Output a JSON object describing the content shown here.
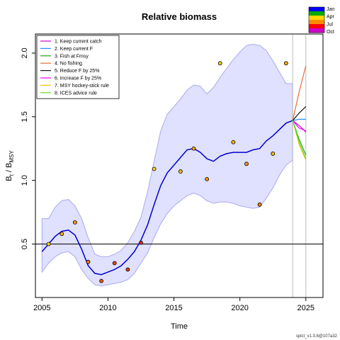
{
  "chart_data": {
    "type": "line",
    "title": "Relative biomass",
    "xlabel": "Time",
    "ylabel_main": "B",
    "ylabel_sub1": "t",
    "ylabel_mid": " / B",
    "ylabel_sub2": "MSY",
    "footer": "spict_v1.3.8@107a32",
    "xlim": [
      2004.5,
      2026.3
    ],
    "ylim": [
      0.08,
      2.15
    ],
    "x_ticks": [
      2005,
      2010,
      2015,
      2020,
      2025
    ],
    "x_tick_labels": [
      "2005",
      "2010",
      "2015",
      "2020",
      "2025"
    ],
    "y_ticks": [
      0.5,
      1.0,
      1.5,
      2.0
    ],
    "y_tick_labels": [
      "0.5",
      "1.0",
      "1.5",
      "2.0"
    ],
    "reference_line_y": 0.5,
    "vertical_lines_x": [
      2024.0,
      2025.0
    ],
    "estimate": {
      "x": [
        2005,
        2005.5,
        2006,
        2006.5,
        2007,
        2007.5,
        2008,
        2008.5,
        2009,
        2009.5,
        2010,
        2010.5,
        2011,
        2011.5,
        2012,
        2012.5,
        2013,
        2013.5,
        2014,
        2014.5,
        2015,
        2015.5,
        2016,
        2016.5,
        2017,
        2017.5,
        2018,
        2018.5,
        2019,
        2019.5,
        2020,
        2020.5,
        2021,
        2021.5,
        2022,
        2022.5,
        2023,
        2023.5,
        2024
      ],
      "y": [
        0.44,
        0.5,
        0.56,
        0.6,
        0.61,
        0.57,
        0.46,
        0.33,
        0.27,
        0.26,
        0.28,
        0.3,
        0.33,
        0.38,
        0.44,
        0.53,
        0.65,
        0.81,
        0.96,
        1.06,
        1.12,
        1.18,
        1.24,
        1.25,
        1.22,
        1.17,
        1.15,
        1.19,
        1.21,
        1.22,
        1.22,
        1.22,
        1.24,
        1.25,
        1.31,
        1.35,
        1.4,
        1.45,
        1.47
      ],
      "lower": [
        0.28,
        0.35,
        0.4,
        0.43,
        0.44,
        0.4,
        0.3,
        0.23,
        0.18,
        0.17,
        0.18,
        0.19,
        0.2,
        0.22,
        0.27,
        0.35,
        0.43,
        0.55,
        0.66,
        0.74,
        0.8,
        0.84,
        0.88,
        0.9,
        0.88,
        0.84,
        0.82,
        0.83,
        0.83,
        0.82,
        0.8,
        0.79,
        0.78,
        0.79,
        0.86,
        0.94,
        1.04,
        1.12,
        1.16
      ],
      "upper": [
        0.7,
        0.7,
        0.79,
        0.84,
        0.85,
        0.8,
        0.7,
        0.55,
        0.42,
        0.4,
        0.4,
        0.42,
        0.45,
        0.51,
        0.6,
        0.71,
        0.91,
        1.15,
        1.39,
        1.52,
        1.58,
        1.64,
        1.71,
        1.75,
        1.74,
        1.68,
        1.73,
        1.81,
        1.88,
        1.95,
        2.01,
        2.06,
        2.07,
        2.06,
        2.02,
        1.94,
        1.85,
        1.76,
        1.76
      ]
    },
    "observations": {
      "x": [
        2005.5,
        2006.5,
        2007.5,
        2008.5,
        2009.5,
        2010.5,
        2011.5,
        2012.5,
        2013.5,
        2015.5,
        2016.5,
        2017.5,
        2018.5,
        2019.5,
        2020.5,
        2021.5,
        2022.5,
        2023.5
      ],
      "y": [
        0.5,
        0.58,
        0.67,
        0.36,
        0.21,
        0.35,
        0.3,
        0.51,
        1.09,
        1.07,
        1.25,
        1.01,
        1.92,
        1.3,
        1.13,
        0.81,
        1.21,
        1.92
      ],
      "colors": [
        "#FFD700",
        "#FFB000",
        "#FF9400",
        "#FF7A00",
        "#F05A0A",
        "#E54C12",
        "#DC3E18",
        "#D03222",
        "#FFD700",
        "#FFC000",
        "#FFA800",
        "#FF9000",
        "#FFD000",
        "#FFB800",
        "#FF9C00",
        "#FF8600",
        "#FFC400",
        "#FFB000"
      ]
    },
    "forecast": {
      "x": [
        2024.0,
        2024.5,
        2025.0
      ],
      "series": [
        {
          "name": "1. Keep current catch",
          "color": "#CC00CC",
          "values": [
            1.47,
            1.43,
            1.38
          ]
        },
        {
          "name": "2. Keep current F",
          "color": "#1E90FF",
          "values": [
            1.47,
            1.48,
            1.48
          ]
        },
        {
          "name": "3. Fish at Fmsy",
          "color": "#22AA22",
          "values": [
            1.47,
            1.32,
            1.2
          ]
        },
        {
          "name": "4. No fishing",
          "color": "#E07030",
          "values": [
            1.47,
            1.7,
            1.9
          ]
        },
        {
          "name": "5. Reduce F by 25%",
          "color": "#111111",
          "values": [
            1.47,
            1.53,
            1.58
          ]
        },
        {
          "name": "6. Increase F by 25%",
          "color": "#FF00FF",
          "values": [
            1.47,
            1.41,
            1.39
          ]
        },
        {
          "name": "7. MSY hockey-stick rule",
          "color": "#E6C800",
          "values": [
            1.47,
            1.28,
            1.16
          ]
        },
        {
          "name": "8. ICES advice rule",
          "color": "#66DD33",
          "values": [
            1.47,
            1.3,
            1.17
          ]
        }
      ]
    },
    "legend_position": "top-left",
    "season_legend": {
      "labels": [
        "Jan",
        "Apr",
        "Jul",
        "Oct"
      ],
      "colors": [
        "#0000FF",
        "#00AA00",
        "#FFD700",
        "#FF8C00",
        "#FF0000",
        "#CC00CC"
      ]
    },
    "colors": {
      "ci_fill": "#E0E0FF",
      "ci_border": "#AAAAEE",
      "estimate_line": "#0000CC",
      "grid_vertical": "#BBBBBB",
      "reference_line": "#000000"
    }
  }
}
